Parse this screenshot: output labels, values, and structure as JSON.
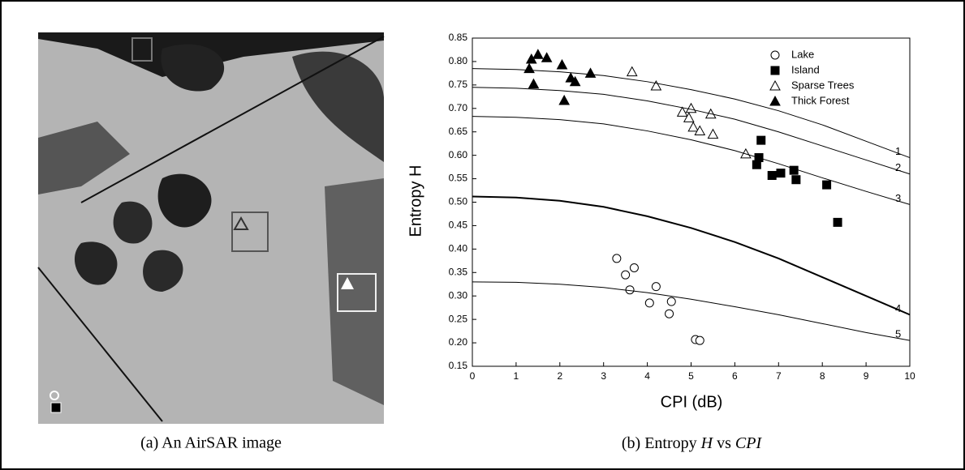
{
  "figure": {
    "caption_a": "(a) An AirSAR image",
    "caption_b": [
      "(b) Entropy ",
      "H",
      " vs ",
      "CPI"
    ]
  },
  "chart_data": {
    "type": "scatter",
    "x_label": "CPI (dB)",
    "y_label": "Entropy H",
    "xlim": [
      0,
      10
    ],
    "ylim": [
      0.15,
      0.85
    ],
    "xticks": [
      0,
      1,
      2,
      3,
      4,
      5,
      6,
      7,
      8,
      9,
      10
    ],
    "yticks": [
      0.15,
      {
        "value": 0.2,
        "label": "0.20"
      },
      0.25,
      {
        "value": 0.3,
        "label": "0.30"
      },
      0.35,
      {
        "value": 0.4,
        "label": "0.40"
      },
      0.45,
      {
        "value": 0.5,
        "label": "0.50"
      },
      0.55,
      {
        "value": 0.6,
        "label": "0.60"
      },
      0.65,
      {
        "value": 0.7,
        "label": "0.70"
      },
      0.75,
      {
        "value": 0.8,
        "label": "0.80"
      },
      0.85
    ],
    "legend": "top-right",
    "series": [
      {
        "name": "Lake",
        "type": "scatter",
        "marker": "circle-open",
        "color": "#000",
        "x": [
          3.3,
          3.5,
          3.7,
          3.6,
          4.2,
          4.05,
          4.55,
          4.5,
          5.1,
          5.2
        ],
        "values": [
          0.38,
          0.345,
          0.36,
          0.313,
          0.32,
          0.285,
          0.288,
          0.262,
          0.207,
          0.205
        ]
      },
      {
        "name": "Island",
        "type": "scatter",
        "marker": "square-filled",
        "color": "#000",
        "x": [
          6.6,
          6.55,
          6.5,
          6.85,
          7.05,
          7.35,
          7.4,
          8.1,
          8.35
        ],
        "values": [
          0.632,
          0.595,
          0.58,
          0.557,
          0.562,
          0.568,
          0.548,
          0.537,
          0.457
        ]
      },
      {
        "name": "Sparse Trees",
        "type": "scatter",
        "marker": "triangle-open",
        "color": "#000",
        "x": [
          3.65,
          4.2,
          4.8,
          5.0,
          4.95,
          5.05,
          5.2,
          5.45,
          5.5,
          6.25
        ],
        "values": [
          0.778,
          0.748,
          0.692,
          0.7,
          0.68,
          0.66,
          0.652,
          0.688,
          0.645,
          0.603
        ]
      },
      {
        "name": "Thick Forest",
        "type": "scatter",
        "marker": "triangle-filled",
        "color": "#000",
        "x": [
          1.3,
          1.35,
          1.5,
          1.4,
          1.7,
          2.05,
          2.25,
          2.35,
          2.1,
          2.7
        ],
        "values": [
          0.785,
          0.805,
          0.815,
          0.752,
          0.808,
          0.793,
          0.765,
          0.757,
          0.717,
          0.775
        ]
      },
      {
        "name": "1",
        "type": "line",
        "line_width": 1,
        "color": "#000",
        "x": [
          0,
          1,
          2,
          3,
          4,
          5,
          6,
          7,
          8,
          9,
          10
        ],
        "values": [
          0.785,
          0.783,
          0.778,
          0.77,
          0.757,
          0.74,
          0.72,
          0.695,
          0.665,
          0.63,
          0.595
        ]
      },
      {
        "name": "2",
        "type": "line",
        "line_width": 1,
        "color": "#000",
        "x": [
          0,
          1,
          2,
          3,
          4,
          5,
          6,
          7,
          8,
          9,
          10
        ],
        "values": [
          0.745,
          0.743,
          0.738,
          0.73,
          0.716,
          0.698,
          0.677,
          0.65,
          0.62,
          0.59,
          0.56
        ]
      },
      {
        "name": "3",
        "type": "line",
        "line_width": 1,
        "color": "#000",
        "x": [
          0,
          1,
          2,
          3,
          4,
          5,
          6,
          7,
          8,
          9,
          10
        ],
        "values": [
          0.683,
          0.681,
          0.676,
          0.667,
          0.652,
          0.633,
          0.61,
          0.582,
          0.552,
          0.523,
          0.495
        ]
      },
      {
        "name": "4",
        "type": "line",
        "line_width": 2,
        "color": "#000",
        "x": [
          0,
          1,
          2,
          3,
          4,
          5,
          6,
          7,
          8,
          9,
          10
        ],
        "values": [
          0.512,
          0.51,
          0.503,
          0.49,
          0.47,
          0.445,
          0.415,
          0.38,
          0.34,
          0.3,
          0.26
        ]
      },
      {
        "name": "5",
        "type": "line",
        "line_width": 1,
        "color": "#000",
        "x": [
          0,
          1,
          2,
          3,
          4,
          5,
          6,
          7,
          8,
          9,
          10
        ],
        "values": [
          0.33,
          0.329,
          0.325,
          0.318,
          0.307,
          0.293,
          0.277,
          0.26,
          0.241,
          0.222,
          0.205
        ]
      }
    ]
  }
}
